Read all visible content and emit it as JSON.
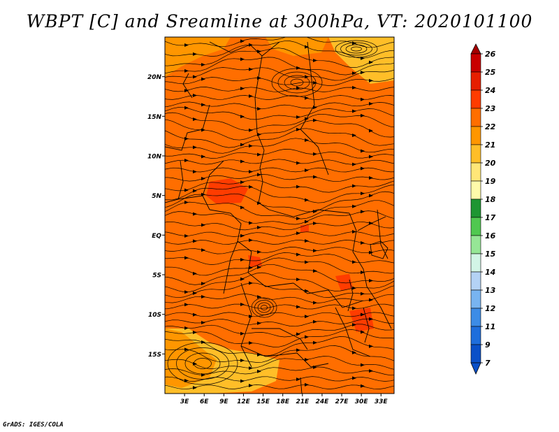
{
  "title": "WBPT [C] and Sreamline at 300hPa, VT: 2020101100",
  "credit": "GrADS: IGES/COLA",
  "map": {
    "lon_labels": [
      "3E",
      "6E",
      "9E",
      "12E",
      "15E",
      "18E",
      "21E",
      "24E",
      "27E",
      "30E",
      "33E"
    ],
    "lat_labels": [
      "20N",
      "15N",
      "10N",
      "5N",
      "EQ",
      "5S",
      "10S",
      "15S"
    ],
    "lon_range": [
      0,
      35
    ],
    "lat_range": [
      -20,
      25
    ]
  },
  "colorbar": {
    "levels": [
      "26",
      "25",
      "24",
      "23",
      "22",
      "21",
      "20",
      "19",
      "18",
      "17",
      "16",
      "15",
      "14",
      "13",
      "12",
      "11",
      "9",
      "7"
    ],
    "colors": [
      "#a50000",
      "#c80000",
      "#e61e00",
      "#ff3c00",
      "#ff6e00",
      "#ff9600",
      "#ffbe28",
      "#ffe678",
      "#fffaaa",
      "#1e9632",
      "#50c850",
      "#96e696",
      "#d2f5e6",
      "#b4d2f5",
      "#78b4f0",
      "#3c8ce6",
      "#1e6edc",
      "#0a50c8"
    ]
  },
  "field_colors": {
    "base": "#ff6e00",
    "warm": "#ff3c00",
    "cool": "#ff9600",
    "cooler": "#ffbe28"
  }
}
